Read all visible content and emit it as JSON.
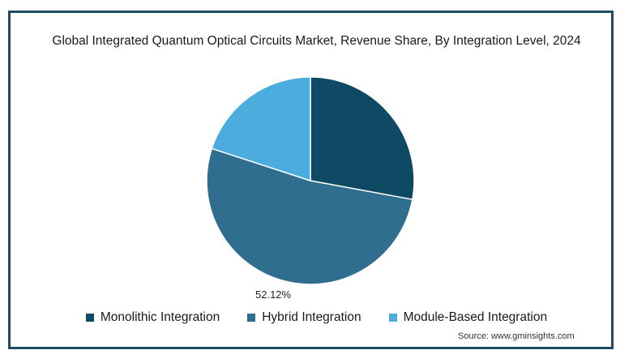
{
  "chart_data": {
    "type": "pie",
    "title": "Global Integrated Quantum Optical Circuits Market, Revenue Share, By Integration Level, 2024",
    "categories": [
      "Monolithic Integration",
      "Hybrid Integration",
      "Module-Based Integration"
    ],
    "values": [
      27.9,
      52.12,
      19.98
    ],
    "colors": [
      "#0e4a63",
      "#2f6e8f",
      "#4badde"
    ],
    "data_labels": [
      "",
      "52.12%",
      ""
    ],
    "legend_position": "bottom",
    "start_angle": "12 o'clock",
    "direction": "clockwise"
  },
  "source": "Source: www.gminsights.com"
}
